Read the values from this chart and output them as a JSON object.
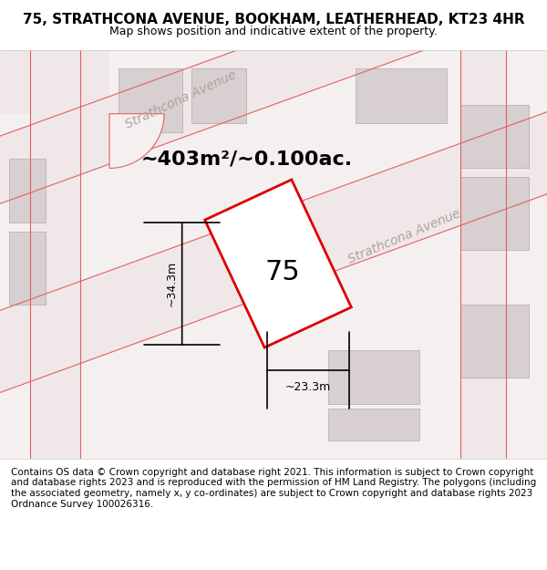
{
  "title": "75, STRATHCONA AVENUE, BOOKHAM, LEATHERHEAD, KT23 4HR",
  "subtitle": "Map shows position and indicative extent of the property.",
  "area_label": "~403m²/~0.100ac.",
  "property_number": "75",
  "width_label": "~23.3m",
  "height_label": "~34.3m",
  "footer": "Contains OS data © Crown copyright and database right 2021. This information is subject to Crown copyright and database rights 2023 and is reproduced with the permission of HM Land Registry. The polygons (including the associated geometry, namely x, y co-ordinates) are subject to Crown copyright and database rights 2023 Ordnance Survey 100026316.",
  "bg_color": "#ffffff",
  "map_bg": "#f5f0f0",
  "road_color": "#e8d8d8",
  "road_line_color": "#e06060",
  "building_color": "#d8d0d0",
  "building_edge_color": "#c0b8b8",
  "plot_line_color": "#dd0000",
  "plot_fill_color": "#ffffff",
  "street_label1": "Strathcona Avenue",
  "street_label2": "Strathcona Avenue",
  "title_fontsize": 11,
  "subtitle_fontsize": 9,
  "footer_fontsize": 7.5
}
